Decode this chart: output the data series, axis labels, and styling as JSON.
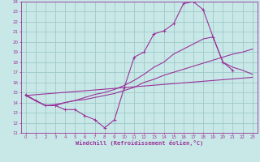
{
  "xlabel": "Windchill (Refroidissement éolien,°C)",
  "xlim": [
    -0.5,
    23.5
  ],
  "ylim": [
    11,
    24
  ],
  "xticks": [
    0,
    1,
    2,
    3,
    4,
    5,
    6,
    7,
    8,
    9,
    10,
    11,
    12,
    13,
    14,
    15,
    16,
    17,
    18,
    19,
    20,
    21,
    22,
    23
  ],
  "yticks": [
    11,
    12,
    13,
    14,
    15,
    16,
    17,
    18,
    19,
    20,
    21,
    22,
    23,
    24
  ],
  "bg_color": "#c8e8e8",
  "line_color": "#993399",
  "grid_color": "#a0c8c8",
  "line1_x": [
    0,
    1,
    2,
    3,
    4,
    5,
    6,
    7,
    8,
    9,
    10,
    11,
    12,
    13,
    14,
    15,
    16,
    17,
    18,
    19,
    20,
    21
  ],
  "line1_y": [
    14.8,
    14.2,
    13.7,
    13.7,
    13.3,
    13.3,
    12.7,
    12.3,
    11.5,
    12.3,
    15.5,
    18.5,
    19.0,
    20.8,
    21.1,
    21.8,
    23.8,
    24.0,
    23.2,
    20.5,
    18.0,
    17.2
  ],
  "line2_x": [
    0,
    1,
    2,
    3,
    4,
    5,
    6,
    7,
    8,
    9,
    10,
    11,
    12,
    13,
    14,
    15,
    16,
    17,
    18,
    19,
    20,
    21,
    22,
    23
  ],
  "line2_y": [
    14.7,
    14.2,
    13.7,
    13.8,
    14.0,
    14.2,
    14.5,
    14.8,
    15.0,
    15.3,
    15.7,
    16.2,
    16.8,
    17.5,
    18.0,
    18.8,
    19.3,
    19.8,
    20.3,
    20.5,
    18.0,
    17.5,
    17.2,
    16.8
  ],
  "line3_x": [
    0,
    1,
    2,
    3,
    4,
    5,
    6,
    7,
    8,
    9,
    10,
    11,
    12,
    13,
    14,
    15,
    16,
    17,
    18,
    19,
    20,
    21,
    22,
    23
  ],
  "line3_y": [
    14.7,
    14.2,
    13.7,
    13.7,
    14.0,
    14.2,
    14.3,
    14.5,
    14.7,
    14.9,
    15.2,
    15.5,
    16.0,
    16.3,
    16.7,
    17.0,
    17.3,
    17.6,
    17.9,
    18.2,
    18.5,
    18.8,
    19.0,
    19.3
  ],
  "line4_x": [
    0,
    23
  ],
  "line4_y": [
    14.7,
    16.5
  ]
}
